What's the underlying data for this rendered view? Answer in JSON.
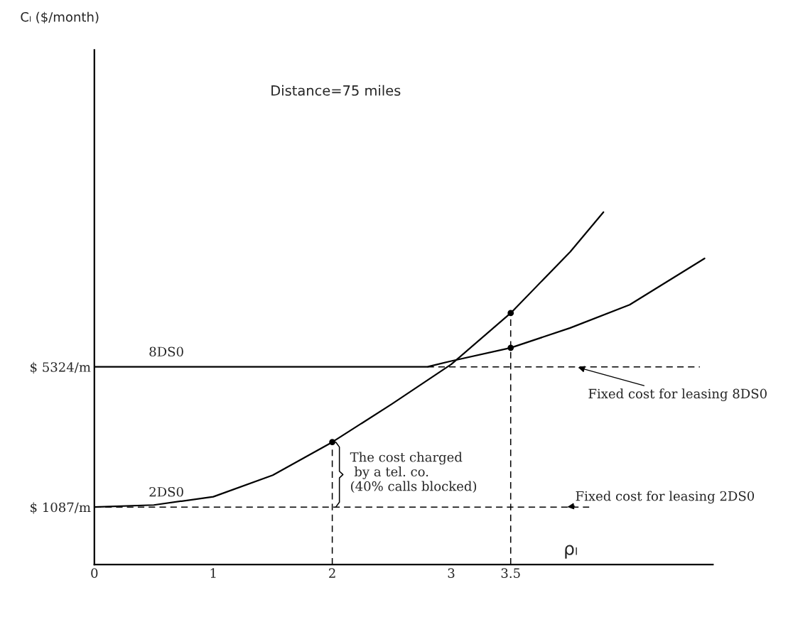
{
  "chart_data": {
    "type": "line",
    "title": "Distance=75 miles",
    "xlabel": "ρₗ",
    "ylabel": "Cₗ ($/month)",
    "xlim": [
      0,
      5.2
    ],
    "ylim": [
      -650,
      14900
    ],
    "xticks": [
      0,
      1,
      2,
      3,
      3.5
    ],
    "yticks": [
      {
        "value": 1087,
        "label": "$ 1087/m"
      },
      {
        "value": 5324,
        "label": "$ 5324/m"
      }
    ],
    "grid": false,
    "legend": false,
    "series": [
      {
        "name": "8DS0",
        "color": "#000000",
        "x": [
          0,
          1,
          2,
          2.8,
          3,
          3.5,
          4,
          4.5,
          5.13
        ],
        "values": [
          5324,
          5324,
          5324,
          5324,
          5500,
          5900,
          6500,
          7200,
          8600
        ]
      },
      {
        "name": "2DS0",
        "color": "#000000",
        "x": [
          0,
          0.5,
          1,
          1.5,
          2,
          2.5,
          3,
          3.5,
          4,
          4.28
        ],
        "values": [
          1087,
          1150,
          1400,
          2050,
          3050,
          4200,
          5400,
          6950,
          8800,
          10000
        ]
      },
      {
        "type": "line",
        "line_style": "dashed",
        "color": "#000000",
        "x": [
          2.8,
          5.09
        ],
        "values": [
          5324,
          5324
        ]
      },
      {
        "type": "line",
        "line_style": "dashed",
        "color": "#000000",
        "x": [
          0,
          4.16
        ],
        "values": [
          1087,
          1087
        ]
      },
      {
        "type": "line",
        "line_style": "dashed",
        "color": "#000000",
        "x": [
          2,
          2
        ],
        "values": [
          -650,
          3050
        ]
      },
      {
        "type": "line",
        "line_style": "dashed",
        "color": "#000000",
        "x": [
          3.5,
          3.5
        ],
        "values": [
          -650,
          6950
        ]
      },
      {
        "type": "scatter",
        "marker": "circle",
        "color": "#000000",
        "x": [
          2,
          3.5,
          3.5
        ],
        "values": [
          3050,
          6950,
          5900
        ]
      }
    ],
    "annotations": [
      {
        "text": "Fixed cost for leasing 8DS0",
        "x": 4.05,
        "y": 5324
      },
      {
        "text": "Fixed cost for leasing 2DS0",
        "x": 3.96,
        "y": 1087
      },
      {
        "text": "The cost charged\n by a tel. co.\n(40% calls blocked)",
        "x": 2,
        "y": 3050
      }
    ]
  }
}
